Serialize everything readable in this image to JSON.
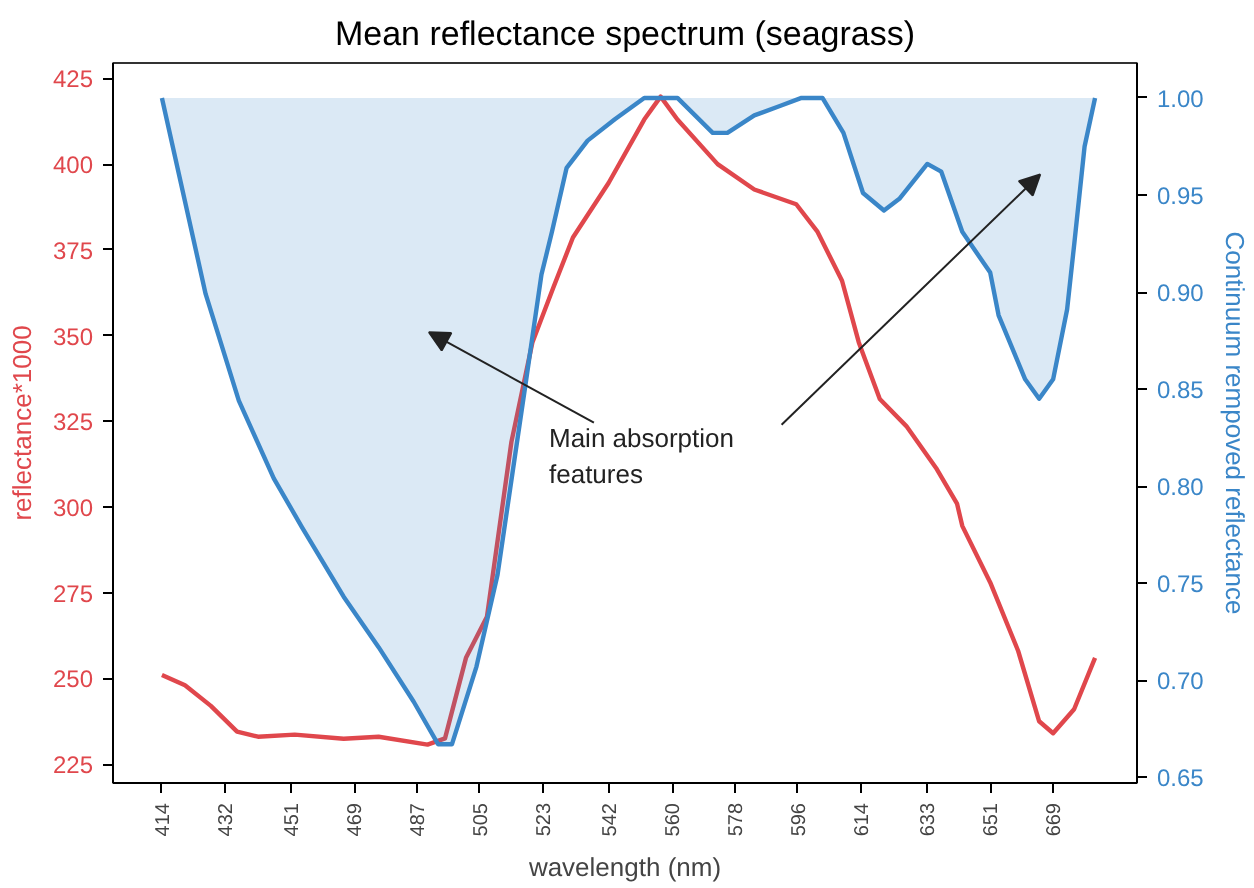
{
  "chart_data": {
    "type": "line",
    "title": "Mean reflectance spectrum (seagrass)",
    "xlabel": "wavelength (nm)",
    "ylabel": "reflectance*1000",
    "y2label": "Continuum rempoved reflectance",
    "xlim": [
      400,
      693
    ],
    "xticks": [
      414,
      432,
      451,
      469,
      487,
      505,
      523,
      542,
      560,
      578,
      596,
      614,
      633,
      651,
      669
    ],
    "ylim": [
      219.5,
      429.5
    ],
    "yticks": [
      225,
      250,
      275,
      300,
      325,
      350,
      375,
      400,
      425
    ],
    "y2lim": [
      0.647,
      1.018
    ],
    "y2ticks": [
      {
        "value": 0.65,
        "label": "0.65"
      },
      {
        "value": 0.7,
        "label": "0.70"
      },
      {
        "value": 0.75,
        "label": "0.75"
      },
      {
        "value": 0.8,
        "label": "0.80"
      },
      {
        "value": 0.85,
        "label": "0.85"
      },
      {
        "value": 0.9,
        "label": "0.90"
      },
      {
        "value": 0.95,
        "label": "0.95"
      },
      {
        "value": 1.0,
        "label": "1.00"
      }
    ],
    "grid": false,
    "line_style": "solid",
    "marker": "none",
    "series": [
      {
        "color": "#e0474c",
        "x": [
          414,
          420.6,
          428,
          435.5,
          441.5,
          452,
          466,
          476,
          490,
          495,
          501,
          507,
          514,
          520,
          526,
          531.6,
          541.8,
          552,
          556.7,
          561.5,
          573,
          583.5,
          595.5,
          601.5,
          608.6,
          613.4,
          619.4,
          627,
          635.5,
          641.5,
          643,
          651,
          659,
          665,
          669,
          675,
          681
        ],
        "values": [
          251,
          248,
          242,
          234.5,
          233,
          233.6,
          232.4,
          233,
          230.7,
          232.5,
          256,
          268,
          319,
          348,
          364,
          378.6,
          394.5,
          413,
          419.7,
          413,
          400,
          392.6,
          388.3,
          380.4,
          366,
          348,
          331.5,
          323.6,
          311.4,
          301,
          294.5,
          278,
          258,
          237.5,
          234,
          241,
          256
        ]
      },
      {
        "color": "#3a86c8",
        "axis": "y2",
        "x": [
          414,
          426.5,
          436,
          446,
          454,
          466,
          476,
          486,
          493,
          497,
          504,
          510,
          518,
          522.6,
          525.6,
          529.8,
          535.8,
          543.6,
          552,
          561.5,
          571.6,
          575.8,
          583.5,
          591,
          597,
          603,
          609,
          614.6,
          620.6,
          625,
          633,
          637,
          643,
          651,
          653.4,
          661,
          665,
          669,
          673,
          675,
          678,
          681
        ],
        "values": [
          1.0,
          0.899,
          0.844,
          0.804,
          0.779,
          0.743,
          0.717,
          0.689,
          0.667,
          0.667,
          0.707,
          0.754,
          0.852,
          0.909,
          0.931,
          0.964,
          0.978,
          0.989,
          1.0,
          1.0,
          0.982,
          0.982,
          0.991,
          0.996,
          1.0,
          1.0,
          0.982,
          0.951,
          0.942,
          0.948,
          0.966,
          0.962,
          0.931,
          0.91,
          0.888,
          0.855,
          0.845,
          0.855,
          0.891,
          0.924,
          0.975,
          1.0
        ],
        "lower": [
          1.0,
          0.899,
          0.844,
          0.804,
          0.779,
          0.743,
          0.717,
          0.689,
          0.667,
          0.667,
          0.707,
          0.754,
          0.852,
          0.909,
          0.931,
          0.964,
          0.978,
          0.989,
          1.0,
          1.0,
          0.982,
          0.982,
          0.991,
          0.996,
          1.0,
          1.0,
          0.982,
          0.951,
          0.942,
          0.948,
          0.966,
          0.962,
          0.931,
          0.91,
          0.888,
          0.855,
          0.845,
          0.855,
          0.891,
          0.924,
          0.975,
          1.0
        ],
        "upper": [
          1.0,
          1.0,
          1.0,
          1.0,
          1.0,
          1.0,
          1.0,
          1.0,
          1.0,
          1.0,
          1.0,
          1.0,
          1.0,
          1.0,
          1.0,
          1.0,
          1.0,
          1.0,
          1.0,
          1.0,
          1.0,
          1.0,
          1.0,
          1.0,
          1.0,
          1.0,
          1.0,
          1.0,
          1.0,
          1.0,
          1.0,
          1.0,
          1.0,
          1.0,
          1.0,
          1.0,
          1.0,
          1.0,
          1.0,
          1.0,
          1.0,
          1.0
        ]
      }
    ],
    "annotations": [
      "Main absorption\nfeatures"
    ]
  }
}
